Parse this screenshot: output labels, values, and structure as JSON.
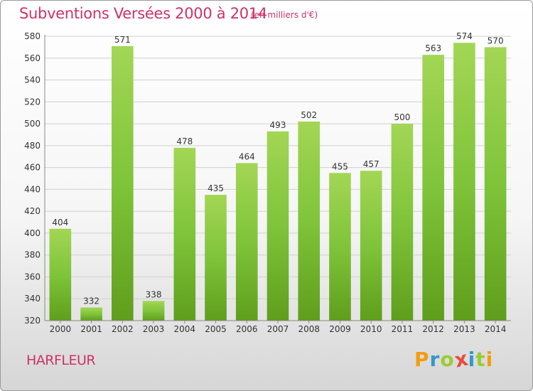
{
  "chart_data": {
    "type": "bar",
    "title": "Subventions Versées 2000 à 2014",
    "subtitle": "(en milliers d'€)",
    "categories": [
      "2000",
      "2001",
      "2002",
      "2003",
      "2004",
      "2005",
      "2006",
      "2007",
      "2008",
      "2009",
      "2010",
      "2011",
      "2012",
      "2013",
      "2014"
    ],
    "values": [
      404,
      332,
      571,
      338,
      478,
      435,
      464,
      493,
      502,
      455,
      457,
      500,
      563,
      574,
      570
    ],
    "ylim": [
      320,
      580
    ],
    "yticks": [
      320,
      340,
      360,
      380,
      400,
      420,
      440,
      460,
      480,
      500,
      520,
      540,
      560,
      580
    ],
    "grid": true,
    "bar_color": "#7fc43a",
    "bar_color_light": "#a3d655",
    "bar_color_dark": "#5f9e1c",
    "grid_color": "#d0d0d0"
  },
  "commune": "HARFLEUR",
  "logo": {
    "letters": [
      "P",
      "r",
      "o",
      "x",
      "i",
      "t",
      "i"
    ],
    "colors": [
      "#f39c12",
      "#3399cc",
      "#99cc33",
      "#e74c3c",
      "#3399cc",
      "#99cc33",
      "#f39c12"
    ]
  }
}
